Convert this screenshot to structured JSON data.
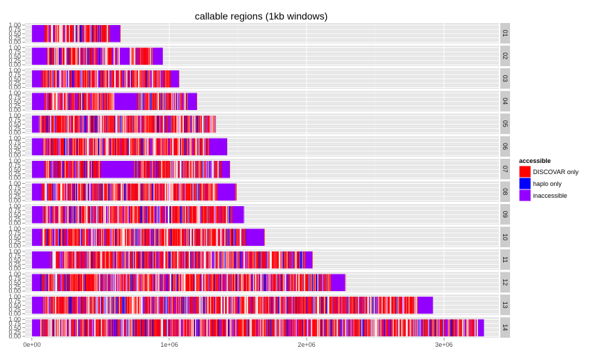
{
  "chart_data": {
    "type": "bar",
    "title": "callable regions (1kb windows)",
    "xlabel": "",
    "ylabel": "",
    "xlim": [
      -50000,
      3400000
    ],
    "ylim": [
      0,
      1
    ],
    "x_ticks": [
      {
        "value": 0,
        "label": "0e+00"
      },
      {
        "value": 1000000,
        "label": "1e+06"
      },
      {
        "value": 2000000,
        "label": "2e+06"
      },
      {
        "value": 3000000,
        "label": "3e+06"
      }
    ],
    "y_ticks": [
      "0.00",
      "0.25",
      "0.50",
      "0.75",
      "1.00"
    ],
    "grid": true,
    "legend": {
      "title": "accessible",
      "position": "right",
      "entries": [
        {
          "label": "DISCOVAR only",
          "color": "#ff0000"
        },
        {
          "label": "haplo only",
          "color": "#0000ff"
        },
        {
          "label": "inaccessible",
          "color": "#9400ff"
        }
      ]
    },
    "panels": [
      {
        "label": "01",
        "length": 640000,
        "inaccessible_segments": [
          [
            0,
            90000
          ],
          [
            570000,
            640000
          ]
        ]
      },
      {
        "label": "02",
        "length": 950000,
        "inaccessible_segments": [
          [
            0,
            110000
          ],
          [
            640000,
            710000
          ],
          [
            880000,
            950000
          ]
        ]
      },
      {
        "label": "03",
        "length": 1070000,
        "inaccessible_segments": [
          [
            0,
            70000
          ],
          [
            1010000,
            1070000
          ]
        ]
      },
      {
        "label": "04",
        "length": 1200000,
        "inaccessible_segments": [
          [
            0,
            90000
          ],
          [
            600000,
            760000
          ],
          [
            1140000,
            1200000
          ]
        ]
      },
      {
        "label": "05",
        "length": 1340000,
        "inaccessible_segments": [
          [
            0,
            50000
          ]
        ]
      },
      {
        "label": "06",
        "length": 1420000,
        "inaccessible_segments": [
          [
            0,
            80000
          ],
          [
            1290000,
            1420000
          ]
        ]
      },
      {
        "label": "07",
        "length": 1440000,
        "inaccessible_segments": [
          [
            0,
            90000
          ],
          [
            500000,
            740000
          ],
          [
            1380000,
            1440000
          ]
        ]
      },
      {
        "label": "08",
        "length": 1480000,
        "inaccessible_segments": [
          [
            0,
            70000
          ],
          [
            1350000,
            1480000
          ]
        ]
      },
      {
        "label": "09",
        "length": 1540000,
        "inaccessible_segments": [
          [
            0,
            80000
          ],
          [
            1460000,
            1540000
          ]
        ]
      },
      {
        "label": "10",
        "length": 1690000,
        "inaccessible_segments": [
          [
            0,
            70000
          ],
          [
            1560000,
            1690000
          ]
        ]
      },
      {
        "label": "11",
        "length": 2040000,
        "inaccessible_segments": [
          [
            0,
            120000
          ],
          [
            1990000,
            2040000
          ]
        ]
      },
      {
        "label": "12",
        "length": 2280000,
        "inaccessible_segments": [
          [
            0,
            60000
          ],
          [
            2180000,
            2280000
          ]
        ]
      },
      {
        "label": "13",
        "length": 2920000,
        "inaccessible_segments": [
          [
            0,
            80000
          ],
          [
            2810000,
            2920000
          ]
        ]
      },
      {
        "label": "14",
        "length": 3290000,
        "inaccessible_segments": [
          [
            0,
            60000
          ],
          [
            3250000,
            3290000
          ]
        ]
      }
    ]
  }
}
